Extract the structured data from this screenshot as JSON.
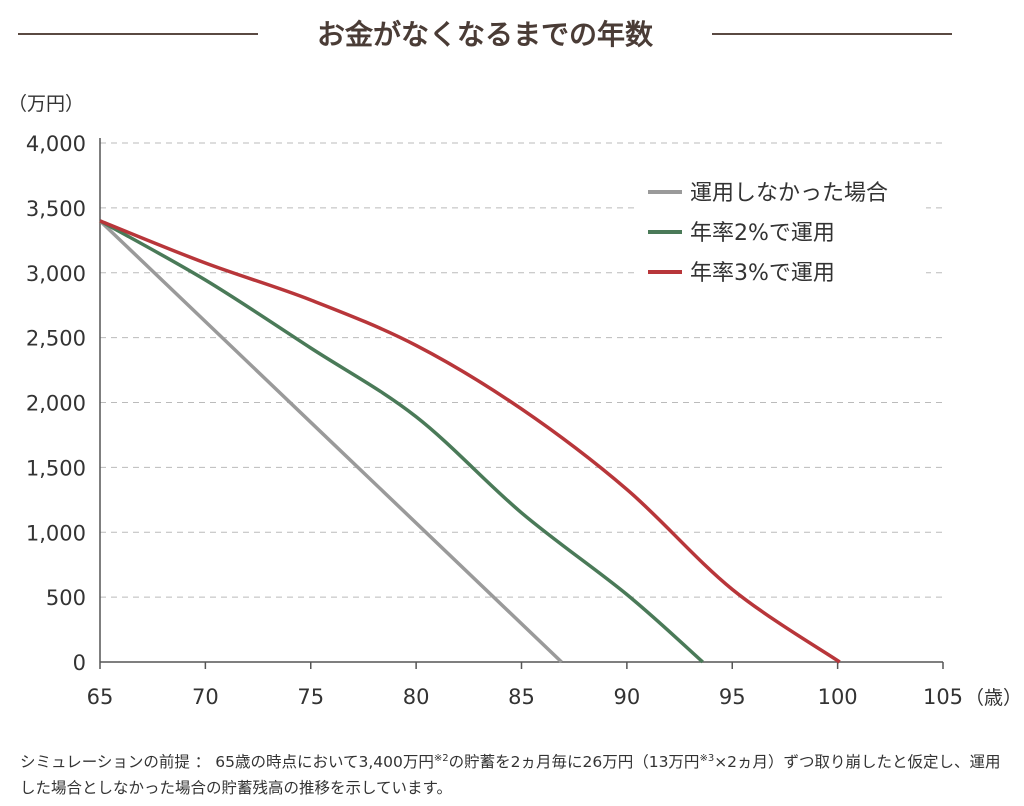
{
  "chart_data": {
    "type": "line",
    "title": "お金がなくなるまでの年数",
    "ylabel": "（万円）",
    "xlabel": "（歳）",
    "xlim": [
      65,
      105
    ],
    "ylim": [
      0,
      4000
    ],
    "x_ticks": [
      65,
      70,
      75,
      80,
      85,
      90,
      95,
      100,
      105
    ],
    "y_ticks": [
      0,
      500,
      1000,
      1500,
      2000,
      2500,
      3000,
      3500,
      4000
    ],
    "y_tick_labels": [
      "0",
      "500",
      "1,000",
      "1,500",
      "2,000",
      "2,500",
      "3,000",
      "3,500",
      "4,000"
    ],
    "grid": "horizontal-dashed",
    "legend_position": "top-right",
    "series": [
      {
        "name": "運用しなかった場合",
        "color": "#9a9a9a",
        "points": [
          [
            65,
            3400
          ],
          [
            86.9,
            0
          ]
        ]
      },
      {
        "name": "年率2%で運用",
        "color": "#4a7a58",
        "points": [
          [
            65,
            3400
          ],
          [
            70,
            2944
          ],
          [
            75,
            2420
          ],
          [
            80,
            1890
          ],
          [
            85,
            1150
          ],
          [
            90,
            520
          ],
          [
            93.6,
            0
          ]
        ]
      },
      {
        "name": "年率3%で運用",
        "color": "#b8363a",
        "points": [
          [
            65,
            3400
          ],
          [
            70,
            3075
          ],
          [
            75,
            2790
          ],
          [
            80,
            2440
          ],
          [
            85,
            1950
          ],
          [
            90,
            1330
          ],
          [
            95,
            560
          ],
          [
            100.1,
            0
          ]
        ]
      }
    ]
  },
  "footnote": {
    "part1": "シミュレーションの前提 ： 65歳の時点において3,400万円",
    "sup1": "※2",
    "part2": "の貯蓄を2ヵ月毎に26万円（13万円",
    "sup2": "※3",
    "part3": "×2ヵ月）ずつ取り崩したと仮定し、運用した場合としなかった場合の貯蓄残高の推移を示しています。"
  },
  "colors": {
    "title_rule": "#5a4a42",
    "axis": "#555555",
    "grid": "#bbbbbb"
  }
}
